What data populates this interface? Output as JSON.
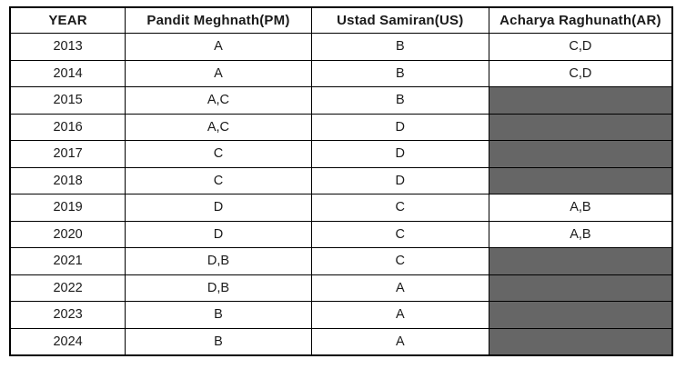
{
  "colors": {
    "shaded_cell": "#666666",
    "border": "#000000",
    "background": "#ffffff",
    "text": "#1a1a1a"
  },
  "table": {
    "headers": [
      "YEAR",
      "Pandit Meghnath(PM)",
      "Ustad Samiran(US)",
      "Acharya Raghunath(AR)"
    ],
    "rows": [
      {
        "year": "2013",
        "pm": "A",
        "us": "B",
        "ar": "C,D",
        "ar_shaded": false
      },
      {
        "year": "2014",
        "pm": "A",
        "us": "B",
        "ar": "C,D",
        "ar_shaded": false
      },
      {
        "year": "2015",
        "pm": "A,C",
        "us": "B",
        "ar": "",
        "ar_shaded": true
      },
      {
        "year": "2016",
        "pm": "A,C",
        "us": "D",
        "ar": "",
        "ar_shaded": true
      },
      {
        "year": "2017",
        "pm": "C",
        "us": "D",
        "ar": "",
        "ar_shaded": true
      },
      {
        "year": "2018",
        "pm": "C",
        "us": "D",
        "ar": "",
        "ar_shaded": true
      },
      {
        "year": "2019",
        "pm": "D",
        "us": "C",
        "ar": "A,B",
        "ar_shaded": false
      },
      {
        "year": "2020",
        "pm": "D",
        "us": "C",
        "ar": "A,B",
        "ar_shaded": false
      },
      {
        "year": "2021",
        "pm": "D,B",
        "us": "C",
        "ar": "",
        "ar_shaded": true
      },
      {
        "year": "2022",
        "pm": "D,B",
        "us": "A",
        "ar": "",
        "ar_shaded": true
      },
      {
        "year": "2023",
        "pm": "B",
        "us": "A",
        "ar": "",
        "ar_shaded": true
      },
      {
        "year": "2024",
        "pm": "B",
        "us": "A",
        "ar": "",
        "ar_shaded": true
      }
    ]
  },
  "chart_data": {
    "type": "table",
    "title": "",
    "columns": [
      "YEAR",
      "Pandit Meghnath(PM)",
      "Ustad Samiran(US)",
      "Acharya Raghunath(AR)"
    ],
    "rows": [
      [
        "2013",
        "A",
        "B",
        "C,D"
      ],
      [
        "2014",
        "A",
        "B",
        "C,D"
      ],
      [
        "2015",
        "A,C",
        "B",
        "(shaded/blank)"
      ],
      [
        "2016",
        "A,C",
        "D",
        "(shaded/blank)"
      ],
      [
        "2017",
        "C",
        "D",
        "(shaded/blank)"
      ],
      [
        "2018",
        "C",
        "D",
        "(shaded/blank)"
      ],
      [
        "2019",
        "D",
        "C",
        "A,B"
      ],
      [
        "2020",
        "D",
        "C",
        "A,B"
      ],
      [
        "2021",
        "D,B",
        "C",
        "(shaded/blank)"
      ],
      [
        "2022",
        "D,B",
        "A",
        "(shaded/blank)"
      ],
      [
        "2023",
        "B",
        "A",
        "(shaded/blank)"
      ],
      [
        "2024",
        "B",
        "A",
        "(shaded/blank)"
      ]
    ],
    "notes": "Cells shaded dark gray (#666666) in the Acharya Raghunath(AR) column for years 2015-2018 and 2021-2024 contain no text."
  }
}
